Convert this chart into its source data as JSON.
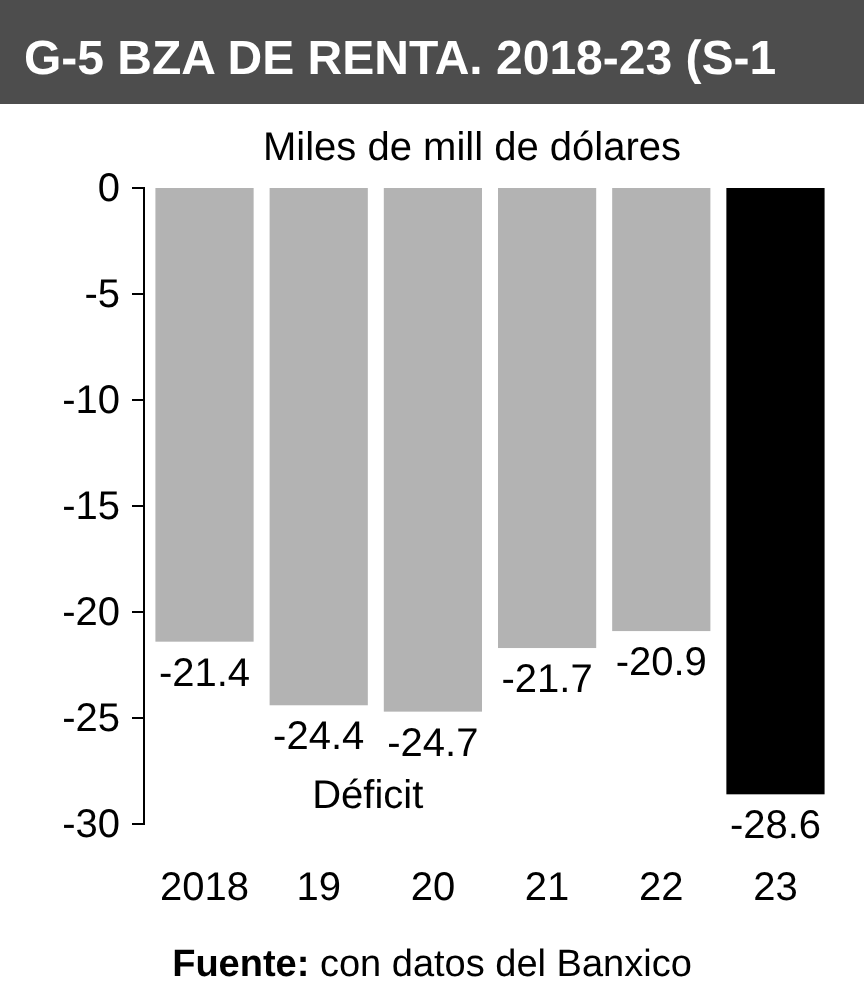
{
  "chart_data": {
    "type": "bar",
    "title": "G-5 BZA DE RENTA. 2018-23 (S-1",
    "subtitle": "Miles de mill de dólares",
    "categories": [
      "2018",
      "19",
      "20",
      "21",
      "22",
      "23"
    ],
    "values": [
      -21.4,
      -24.4,
      -24.7,
      -21.7,
      -20.9,
      -28.6
    ],
    "colors": [
      "#b3b3b3",
      "#b3b3b3",
      "#b3b3b3",
      "#b3b3b3",
      "#b3b3b3",
      "#000000"
    ],
    "ylim": [
      -30,
      0
    ],
    "yticks": [
      0,
      -5,
      -10,
      -15,
      -20,
      -25,
      -30
    ],
    "grid": false,
    "data_labels": true,
    "annotations": [
      "Déficit",
      "Fuente: con datos del Banxico"
    ]
  }
}
